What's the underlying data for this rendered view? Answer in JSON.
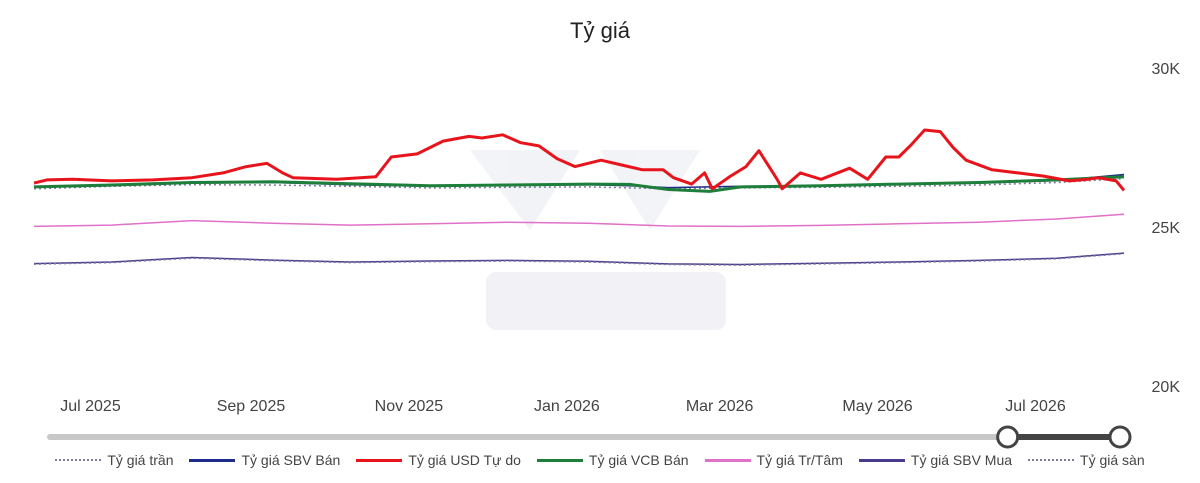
{
  "chart_data": {
    "type": "line",
    "title": "Tỷ giá",
    "xlabel": "",
    "ylabel": "",
    "x_range": [
      "2025-06-20",
      "2026-08-15"
    ],
    "ylim": [
      20000,
      30000
    ],
    "y_ticks": [
      {
        "value": 30000,
        "label": "30K"
      },
      {
        "value": 25000,
        "label": "25K"
      },
      {
        "value": 20000,
        "label": "20K"
      }
    ],
    "x_ticks": [
      {
        "date": "2025-07-01",
        "label": "Jul 2025"
      },
      {
        "date": "2025-09-01",
        "label": "Sep 2025"
      },
      {
        "date": "2025-11-01",
        "label": "Nov 2025"
      },
      {
        "date": "2026-01-01",
        "label": "Jan 2026"
      },
      {
        "date": "2026-03-01",
        "label": "Mar 2026"
      },
      {
        "date": "2026-05-01",
        "label": "May 2026"
      },
      {
        "date": "2026-07-01",
        "label": "Jul 2026"
      }
    ],
    "grid": false,
    "legend_position": "bottom",
    "series": [
      {
        "name": "Tỷ giá trần",
        "color": "#7a7a9a",
        "dash": "dotted",
        "points": [
          [
            "2025-06-20",
            26200
          ],
          [
            "2025-07-20",
            26280
          ],
          [
            "2025-08-20",
            26330
          ],
          [
            "2025-09-20",
            26320
          ],
          [
            "2025-10-20",
            26280
          ],
          [
            "2025-11-20",
            26230
          ],
          [
            "2025-12-20",
            26250
          ],
          [
            "2026-01-20",
            26260
          ],
          [
            "2026-02-20",
            26200
          ],
          [
            "2026-03-20",
            26230
          ],
          [
            "2026-04-20",
            26250
          ],
          [
            "2026-05-20",
            26280
          ],
          [
            "2026-06-20",
            26320
          ],
          [
            "2026-07-20",
            26400
          ],
          [
            "2026-08-15",
            26520
          ]
        ]
      },
      {
        "name": "Tỷ giá SBV Bán",
        "color": "#1f2a8c",
        "dash": "solid",
        "points": [
          [
            "2025-06-20",
            26250
          ],
          [
            "2025-07-20",
            26300
          ],
          [
            "2025-08-20",
            26380
          ],
          [
            "2025-09-20",
            26400
          ],
          [
            "2025-10-20",
            26330
          ],
          [
            "2025-11-20",
            26280
          ],
          [
            "2025-12-20",
            26310
          ],
          [
            "2026-01-20",
            26330
          ],
          [
            "2026-02-05",
            26300
          ],
          [
            "2026-02-20",
            26240
          ],
          [
            "2026-03-20",
            26280
          ],
          [
            "2026-04-20",
            26300
          ],
          [
            "2026-05-20",
            26340
          ],
          [
            "2026-06-20",
            26380
          ],
          [
            "2026-07-20",
            26460
          ],
          [
            "2026-08-15",
            26650
          ]
        ]
      },
      {
        "name": "Tỷ giá USD Tự do",
        "color": "#e8141c",
        "dash": "solid",
        "points": [
          [
            "2025-06-20",
            26380
          ],
          [
            "2025-06-25",
            26480
          ],
          [
            "2025-07-05",
            26500
          ],
          [
            "2025-07-20",
            26450
          ],
          [
            "2025-08-05",
            26480
          ],
          [
            "2025-08-20",
            26550
          ],
          [
            "2025-09-01",
            26700
          ],
          [
            "2025-09-10",
            26900
          ],
          [
            "2025-09-18",
            27000
          ],
          [
            "2025-09-24",
            26700
          ],
          [
            "2025-09-28",
            26550
          ],
          [
            "2025-10-15",
            26500
          ],
          [
            "2025-10-30",
            26580
          ],
          [
            "2025-11-05",
            27200
          ],
          [
            "2025-11-15",
            27300
          ],
          [
            "2025-11-25",
            27700
          ],
          [
            "2025-12-05",
            27850
          ],
          [
            "2025-12-10",
            27800
          ],
          [
            "2025-12-18",
            27900
          ],
          [
            "2025-12-25",
            27650
          ],
          [
            "2026-01-01",
            27550
          ],
          [
            "2026-01-08",
            27150
          ],
          [
            "2026-01-15",
            26900
          ],
          [
            "2026-01-25",
            27100
          ],
          [
            "2026-02-02",
            26950
          ],
          [
            "2026-02-10",
            26800
          ],
          [
            "2026-02-18",
            26800
          ],
          [
            "2026-02-22",
            26550
          ],
          [
            "2026-03-01",
            26350
          ],
          [
            "2026-03-06",
            26700
          ],
          [
            "2026-03-09",
            26200
          ],
          [
            "2026-03-16",
            26600
          ],
          [
            "2026-03-22",
            26900
          ],
          [
            "2026-03-27",
            27400
          ],
          [
            "2026-04-03",
            26500
          ],
          [
            "2026-04-05",
            26200
          ],
          [
            "2026-04-12",
            26700
          ],
          [
            "2026-04-20",
            26500
          ],
          [
            "2026-05-01",
            26850
          ],
          [
            "2026-05-08",
            26500
          ],
          [
            "2026-05-15",
            27200
          ],
          [
            "2026-05-20",
            27200
          ],
          [
            "2026-05-25",
            27600
          ],
          [
            "2026-05-30",
            28050
          ],
          [
            "2026-06-05",
            28000
          ],
          [
            "2026-06-10",
            27500
          ],
          [
            "2026-06-15",
            27100
          ],
          [
            "2026-06-25",
            26800
          ],
          [
            "2026-07-05",
            26700
          ],
          [
            "2026-07-15",
            26600
          ],
          [
            "2026-07-25",
            26450
          ],
          [
            "2026-08-01",
            26500
          ],
          [
            "2026-08-05",
            26550
          ],
          [
            "2026-08-12",
            26450
          ],
          [
            "2026-08-15",
            26150
          ]
        ]
      },
      {
        "name": "Tỷ giá VCB Bán",
        "color": "#1d7f3a",
        "dash": "solid",
        "points": [
          [
            "2025-06-20",
            26260
          ],
          [
            "2025-07-20",
            26320
          ],
          [
            "2025-08-20",
            26400
          ],
          [
            "2025-09-20",
            26420
          ],
          [
            "2025-10-20",
            26360
          ],
          [
            "2025-11-20",
            26300
          ],
          [
            "2025-12-20",
            26320
          ],
          [
            "2026-01-20",
            26350
          ],
          [
            "2026-02-05",
            26340
          ],
          [
            "2026-02-20",
            26180
          ],
          [
            "2026-03-08",
            26120
          ],
          [
            "2026-03-20",
            26260
          ],
          [
            "2026-04-20",
            26300
          ],
          [
            "2026-05-20",
            26350
          ],
          [
            "2026-06-20",
            26400
          ],
          [
            "2026-07-20",
            26480
          ],
          [
            "2026-08-15",
            26580
          ]
        ]
      },
      {
        "name": "Tỷ giá Tr/Tâm",
        "color": "#e070c8",
        "dash": "solid",
        "points": [
          [
            "2025-06-20",
            25020
          ],
          [
            "2025-07-20",
            25060
          ],
          [
            "2025-08-20",
            25200
          ],
          [
            "2025-09-20",
            25120
          ],
          [
            "2025-10-20",
            25060
          ],
          [
            "2025-11-20",
            25100
          ],
          [
            "2025-12-20",
            25150
          ],
          [
            "2026-01-20",
            25120
          ],
          [
            "2026-02-20",
            25030
          ],
          [
            "2026-03-20",
            25020
          ],
          [
            "2026-04-20",
            25050
          ],
          [
            "2026-05-20",
            25100
          ],
          [
            "2026-06-20",
            25150
          ],
          [
            "2026-07-20",
            25250
          ],
          [
            "2026-08-15",
            25400
          ]
        ]
      },
      {
        "name": "Tỷ giá SBV Mua",
        "color": "#4b3b8f",
        "dash": "solid",
        "points": [
          [
            "2025-06-20",
            23850
          ],
          [
            "2025-07-20",
            23900
          ],
          [
            "2025-08-20",
            24040
          ],
          [
            "2025-09-20",
            23960
          ],
          [
            "2025-10-20",
            23900
          ],
          [
            "2025-11-20",
            23930
          ],
          [
            "2025-12-20",
            23950
          ],
          [
            "2026-01-20",
            23920
          ],
          [
            "2026-02-20",
            23840
          ],
          [
            "2026-03-20",
            23820
          ],
          [
            "2026-04-20",
            23860
          ],
          [
            "2026-05-20",
            23900
          ],
          [
            "2026-06-20",
            23950
          ],
          [
            "2026-07-20",
            24020
          ],
          [
            "2026-08-15",
            24180
          ]
        ]
      },
      {
        "name": "Tỷ giá sàn",
        "color": "#7a7a9a",
        "dash": "dotted",
        "points": [
          [
            "2025-06-20",
            23830
          ],
          [
            "2025-07-20",
            23880
          ],
          [
            "2025-08-20",
            24020
          ],
          [
            "2025-09-20",
            23940
          ],
          [
            "2025-10-20",
            23880
          ],
          [
            "2025-11-20",
            23910
          ],
          [
            "2025-12-20",
            23930
          ],
          [
            "2026-01-20",
            23900
          ],
          [
            "2026-02-20",
            23820
          ],
          [
            "2026-03-20",
            23800
          ],
          [
            "2026-04-20",
            23840
          ],
          [
            "2026-05-20",
            23880
          ],
          [
            "2026-06-20",
            23930
          ],
          [
            "2026-07-20",
            24000
          ],
          [
            "2026-08-15",
            24160
          ]
        ]
      }
    ],
    "slider_range": [
      0.895,
      1.0
    ]
  }
}
